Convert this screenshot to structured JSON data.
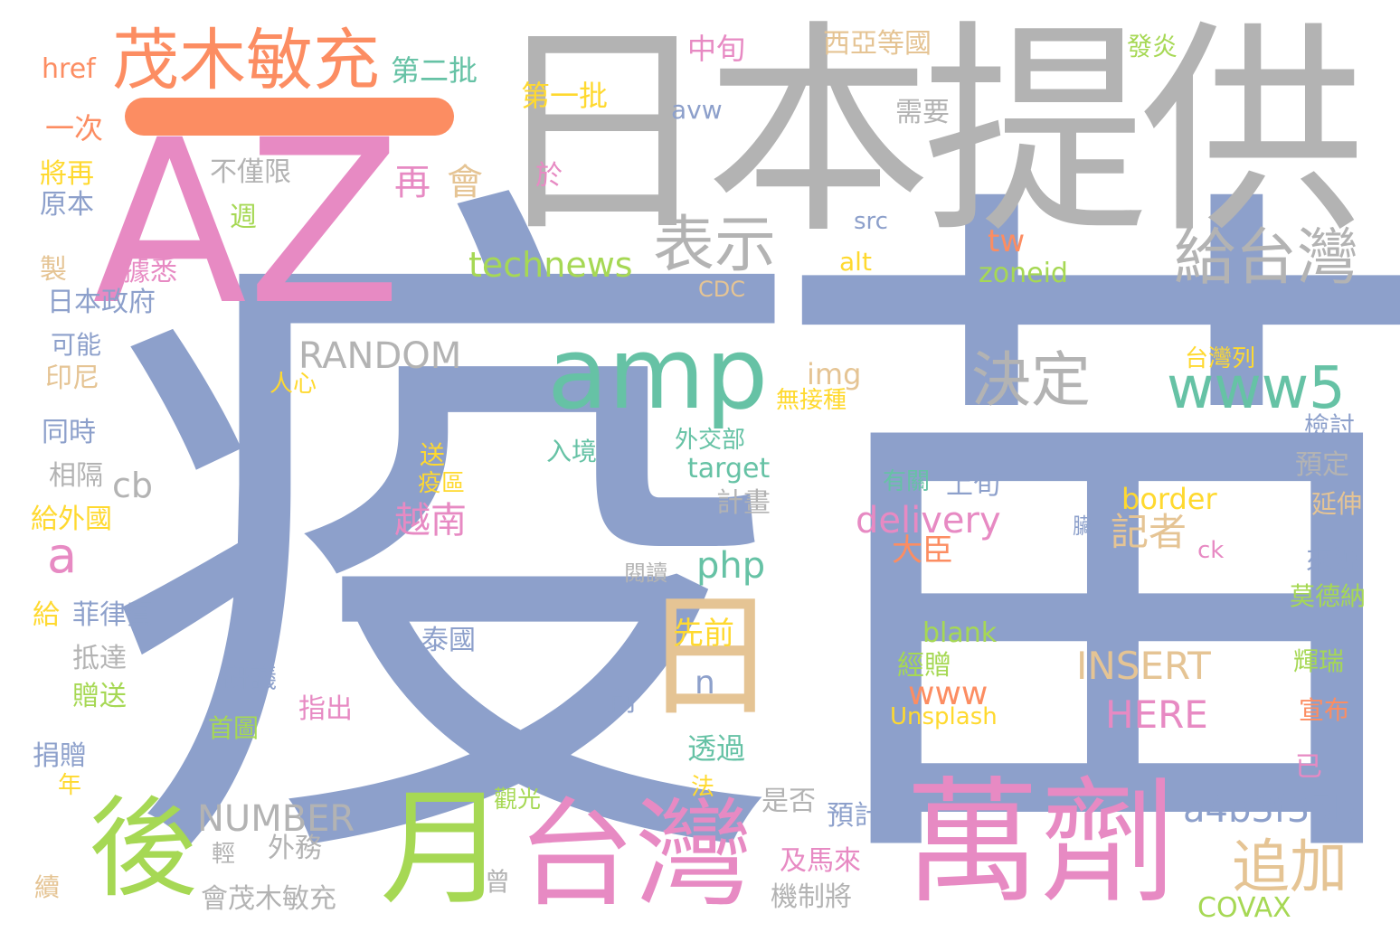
{
  "colors": {
    "blue": "#8da0cb",
    "gray": "#b3b3b3",
    "pink": "#e78ac3",
    "green": "#a6d854",
    "teal": "#66c2a5",
    "orange": "#fc8d62",
    "yellow": "#ffd92f",
    "tan": "#e5c494"
  },
  "words": [
    {
      "text": "疫苗",
      "color": "#8da0cb",
      "size": 1
    },
    {
      "text": "日本提供",
      "color": "#b3b3b3",
      "size": 2
    },
    {
      "text": "AZ",
      "color": "#e78ac3",
      "size": 3
    },
    {
      "text": "茂木敏充",
      "color": "#fc8d62",
      "size": 4
    },
    {
      "text": "萬劑",
      "color": "#e78ac3",
      "size": 5
    },
    {
      "text": "台灣",
      "color": "#e78ac3",
      "size": 6
    },
    {
      "text": "月",
      "color": "#a6d854",
      "size": 7
    },
    {
      "text": "後",
      "color": "#a6d854",
      "size": 8
    },
    {
      "text": "amp",
      "color": "#66c2a5",
      "size": 9
    },
    {
      "text": "日",
      "color": "#e5c494",
      "size": 10
    },
    {
      "text": "給台灣",
      "color": "#b3b3b3",
      "size": 11
    },
    {
      "text": "表示",
      "color": "#b3b3b3",
      "size": 12
    },
    {
      "text": "決定",
      "color": "#b3b3b3",
      "size": 13
    },
    {
      "text": "www5",
      "color": "#66c2a5",
      "size": 14
    },
    {
      "text": "追加",
      "color": "#e5c494",
      "size": 15
    },
    {
      "text": "a4b3f35b",
      "color": "#8da0cb",
      "size": 16
    },
    {
      "text": "technews",
      "color": "#a6d854",
      "size": 17
    },
    {
      "text": "RANDOM",
      "color": "#b3b3b3",
      "size": 18
    },
    {
      "text": "NUMBER",
      "color": "#b3b3b3",
      "size": 19
    },
    {
      "text": "delivery",
      "color": "#e78ac3",
      "size": 20
    },
    {
      "text": "INSERT",
      "color": "#e5c494",
      "size": 21
    },
    {
      "text": "HERE",
      "color": "#e78ac3",
      "size": 22
    },
    {
      "text": "php",
      "color": "#66c2a5",
      "size": 23
    },
    {
      "text": "越南",
      "color": "#e78ac3",
      "size": 24
    },
    {
      "text": "記者",
      "color": "#e5c494",
      "size": 25
    },
    {
      "text": "再",
      "color": "#e78ac3",
      "size": 26
    },
    {
      "text": "會",
      "color": "#e5c494",
      "size": 27
    },
    {
      "text": "a",
      "color": "#e78ac3",
      "size": 28
    },
    {
      "text": "cb",
      "color": "#b3b3b3",
      "size": 29
    },
    {
      "text": "n",
      "color": "#8da0cb",
      "size": 30
    },
    {
      "text": "www",
      "color": "#fc8d62",
      "size": 31
    },
    {
      "text": "tw",
      "color": "#fc8d62",
      "size": 32
    },
    {
      "text": "border",
      "color": "#ffd92f",
      "size": 33
    },
    {
      "text": "target",
      "color": "#66c2a5",
      "size": 34
    },
    {
      "text": "zoneid",
      "color": "#a6d854",
      "size": 35
    },
    {
      "text": "blank",
      "color": "#a6d854",
      "size": 36
    },
    {
      "text": "img",
      "color": "#e5c494",
      "size": 37
    },
    {
      "text": "COVAX",
      "color": "#a6d854",
      "size": 38
    },
    {
      "text": "Unsplash",
      "color": "#ffd92f",
      "size": 39
    },
    {
      "text": "先前",
      "color": "#ffd92f",
      "size": 40
    },
    {
      "text": "大臣",
      "color": "#fc8d62",
      "size": 41
    },
    {
      "text": "第一批",
      "color": "#ffd92f",
      "size": 42
    },
    {
      "text": "第二批",
      "color": "#66c2a5",
      "size": 43
    },
    {
      "text": "中旬",
      "color": "#e78ac3",
      "size": 44
    },
    {
      "text": "西亞等國",
      "color": "#e5c494",
      "size": 45
    },
    {
      "text": "發炎",
      "color": "#a6d854",
      "size": 46
    },
    {
      "text": "href",
      "color": "#fc8d62",
      "size": 47
    },
    {
      "text": "一次",
      "color": "#fc8d62",
      "size": 48
    },
    {
      "text": "將再",
      "color": "#ffd92f",
      "size": 49
    },
    {
      "text": "原本",
      "color": "#8da0cb",
      "size": 50
    },
    {
      "text": "製",
      "color": "#e5c494",
      "size": 51
    },
    {
      "text": "據悉",
      "color": "#e78ac3",
      "size": 52
    },
    {
      "text": "日本政府",
      "color": "#8da0cb",
      "size": 53
    },
    {
      "text": "可能",
      "color": "#8da0cb",
      "size": 54
    },
    {
      "text": "印尼",
      "color": "#e5c494",
      "size": 55
    },
    {
      "text": "同時",
      "color": "#8da0cb",
      "size": 56
    },
    {
      "text": "相隔",
      "color": "#b3b3b3",
      "size": 57
    },
    {
      "text": "給外國",
      "color": "#ffd92f",
      "size": 58
    },
    {
      "text": "給",
      "color": "#ffd92f",
      "size": 59
    },
    {
      "text": "菲律賓",
      "color": "#8da0cb",
      "size": 60
    },
    {
      "text": "抵達",
      "color": "#b3b3b3",
      "size": 61
    },
    {
      "text": "贈送",
      "color": "#a6d854",
      "size": 62
    },
    {
      "text": "捐贈",
      "color": "#8da0cb",
      "size": 63
    },
    {
      "text": "年",
      "color": "#ffd92f",
      "size": 64
    },
    {
      "text": "續",
      "color": "#e5c494",
      "size": 65
    },
    {
      "text": "不僅限",
      "color": "#b3b3b3",
      "size": 66
    },
    {
      "text": "週",
      "color": "#a6d854",
      "size": 67
    },
    {
      "text": "avw",
      "color": "#8da0cb",
      "size": 68
    },
    {
      "text": "需要",
      "color": "#b3b3b3",
      "size": 69
    },
    {
      "text": "於",
      "color": "#e78ac3",
      "size": 70
    },
    {
      "text": "src",
      "color": "#8da0cb",
      "size": 71
    },
    {
      "text": "alt",
      "color": "#ffd92f",
      "size": 72
    },
    {
      "text": "CDC",
      "color": "#e5c494",
      "size": 73
    },
    {
      "text": "人心",
      "color": "#ffd92f",
      "size": 74
    },
    {
      "text": "無接種",
      "color": "#ffd92f",
      "size": 75
    },
    {
      "text": "台灣列",
      "color": "#ffd92f",
      "size": 76
    },
    {
      "text": "檢討",
      "color": "#8da0cb",
      "size": 77
    },
    {
      "text": "預定",
      "color": "#b3b3b3",
      "size": 78
    },
    {
      "text": "延伸",
      "color": "#e5c494",
      "size": 79
    },
    {
      "text": "來源",
      "color": "#8da0cb",
      "size": 80
    },
    {
      "text": "莫德納",
      "color": "#a6d854",
      "size": 81
    },
    {
      "text": "輝瑞",
      "color": "#a6d854",
      "size": 82
    },
    {
      "text": "宣布",
      "color": "#fc8d62",
      "size": 83
    },
    {
      "text": "已",
      "color": "#e78ac3",
      "size": 84
    },
    {
      "text": "送",
      "color": "#ffd92f",
      "size": 85
    },
    {
      "text": "疫區",
      "color": "#ffd92f",
      "size": 86
    },
    {
      "text": "入境",
      "color": "#66c2a5",
      "size": 87
    },
    {
      "text": "外交部",
      "color": "#66c2a5",
      "size": 88
    },
    {
      "text": "計畫",
      "color": "#b3b3b3",
      "size": 89
    },
    {
      "text": "有關",
      "color": "#66c2a5",
      "size": 90
    },
    {
      "text": "上旬",
      "color": "#8da0cb",
      "size": 91
    },
    {
      "text": "臟",
      "color": "#8da0cb",
      "size": 92
    },
    {
      "text": "ck",
      "color": "#e78ac3",
      "size": 93
    },
    {
      "text": "閱讀",
      "color": "#b3b3b3",
      "size": 94
    },
    {
      "text": "泰國",
      "color": "#8da0cb",
      "size": 95
    },
    {
      "text": "研議",
      "color": "#8da0cb",
      "size": 96
    },
    {
      "text": "指出",
      "color": "#e78ac3",
      "size": 97
    },
    {
      "text": "前",
      "color": "#8da0cb",
      "size": 98
    },
    {
      "text": "經贈",
      "color": "#a6d854",
      "size": 99
    },
    {
      "text": "首圖",
      "color": "#a6d854",
      "size": 100
    },
    {
      "text": "透過",
      "color": "#66c2a5",
      "size": 101
    },
    {
      "text": "法",
      "color": "#ffd92f",
      "size": 102
    },
    {
      "text": "觀光",
      "color": "#a6d854",
      "size": 103
    },
    {
      "text": "是否",
      "color": "#b3b3b3",
      "size": 104
    },
    {
      "text": "預計",
      "color": "#8da0cb",
      "size": 105
    },
    {
      "text": "及馬來",
      "color": "#e78ac3",
      "size": 106
    },
    {
      "text": "輕",
      "color": "#b3b3b3",
      "size": 107
    },
    {
      "text": "外務",
      "color": "#b3b3b3",
      "size": 108
    },
    {
      "text": "會茂木敏充",
      "color": "#b3b3b3",
      "size": 109
    },
    {
      "text": "曾",
      "color": "#b3b3b3",
      "size": 110
    },
    {
      "text": "機制將",
      "color": "#b3b3b3",
      "size": 111
    }
  ]
}
